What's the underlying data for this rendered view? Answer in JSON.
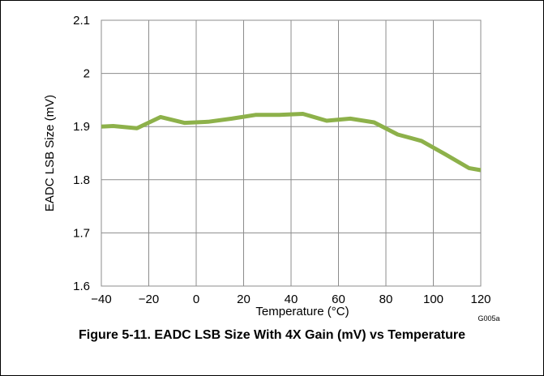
{
  "figure": {
    "caption": "Figure 5-11. EADC LSB Size With 4X Gain (mV) vs Temperature",
    "graph_id": "G005a"
  },
  "colors": {
    "line": "#8db14a",
    "grid": "#8c8c8c",
    "axis": "#000000"
  },
  "chart_data": {
    "type": "line",
    "xlabel": "Temperature (°C)",
    "ylabel": "EADC LSB Size (mV)",
    "xlim": [
      -40,
      120
    ],
    "ylim": [
      1.6,
      2.1
    ],
    "xticks": [
      -40,
      -20,
      0,
      20,
      40,
      60,
      80,
      100,
      120
    ],
    "yticks": [
      1.6,
      1.7,
      1.8,
      1.9,
      2,
      2.1
    ],
    "xtick_labels": [
      "−40",
      "−20",
      "0",
      "20",
      "40",
      "60",
      "80",
      "100",
      "120"
    ],
    "ytick_labels": [
      "1.6",
      "1.7",
      "1.8",
      "1.9",
      "2",
      "2.1"
    ],
    "grid": true,
    "series": [
      {
        "x": [
          -40,
          -35,
          -25,
          -15,
          -5,
          5,
          15,
          25,
          35,
          45,
          55,
          65,
          75,
          85,
          95,
          105,
          115,
          120
        ],
        "y": [
          1.9,
          1.901,
          1.897,
          1.918,
          1.907,
          1.909,
          1.915,
          1.922,
          1.922,
          1.924,
          1.911,
          1.915,
          1.908,
          1.885,
          1.873,
          1.848,
          1.822,
          1.818
        ]
      }
    ]
  }
}
